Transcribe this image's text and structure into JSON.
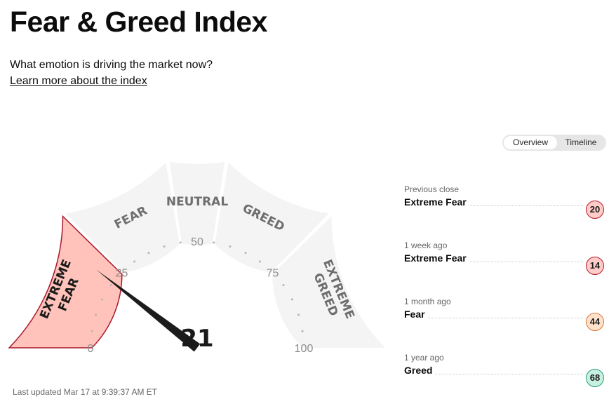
{
  "header": {
    "title": "Fear & Greed Index",
    "subtitle": "What emotion is driving the market now?",
    "learn_more": "Learn more about the index"
  },
  "view_toggle": {
    "overview": "Overview",
    "timeline": "Timeline",
    "selected": "Overview"
  },
  "gauge": {
    "score": 21,
    "active_segment": "extreme-fear",
    "segments": {
      "extreme_fear": [
        "EXTREME",
        "FEAR"
      ],
      "fear": [
        "FEAR"
      ],
      "neutral": [
        "NEUTRAL"
      ],
      "greed": [
        "GREED"
      ],
      "extreme_greed": [
        "EXTREME",
        "GREED"
      ]
    },
    "ticks": [
      "0",
      "25",
      "50",
      "75",
      "100"
    ]
  },
  "colors": {
    "segment_bg": "#f4f4f4",
    "extreme_fear_fill": "#ffc3bb",
    "extreme_fear_border": "#a9162b",
    "needle": "#1c1c1c",
    "badge_fear_bg": "#ffccc7",
    "badge_fear_border": "#b31a2b",
    "badge_mid_bg": "#ffe1cc",
    "badge_mid_border": "#d97a3a",
    "badge_greed_bg": "#c8f0e0",
    "badge_greed_border": "#2a9d78"
  },
  "history": [
    {
      "label": "Previous close",
      "value": "Extreme Fear",
      "score": "20"
    },
    {
      "label": "1 week ago",
      "value": "Extreme Fear",
      "score": "14"
    },
    {
      "label": "1 month ago",
      "value": "Fear",
      "score": "44"
    },
    {
      "label": "1 year ago",
      "value": "Greed",
      "score": "68"
    }
  ],
  "footer": {
    "last_updated": "Last updated Mar 17 at 9:39:37 AM ET"
  }
}
